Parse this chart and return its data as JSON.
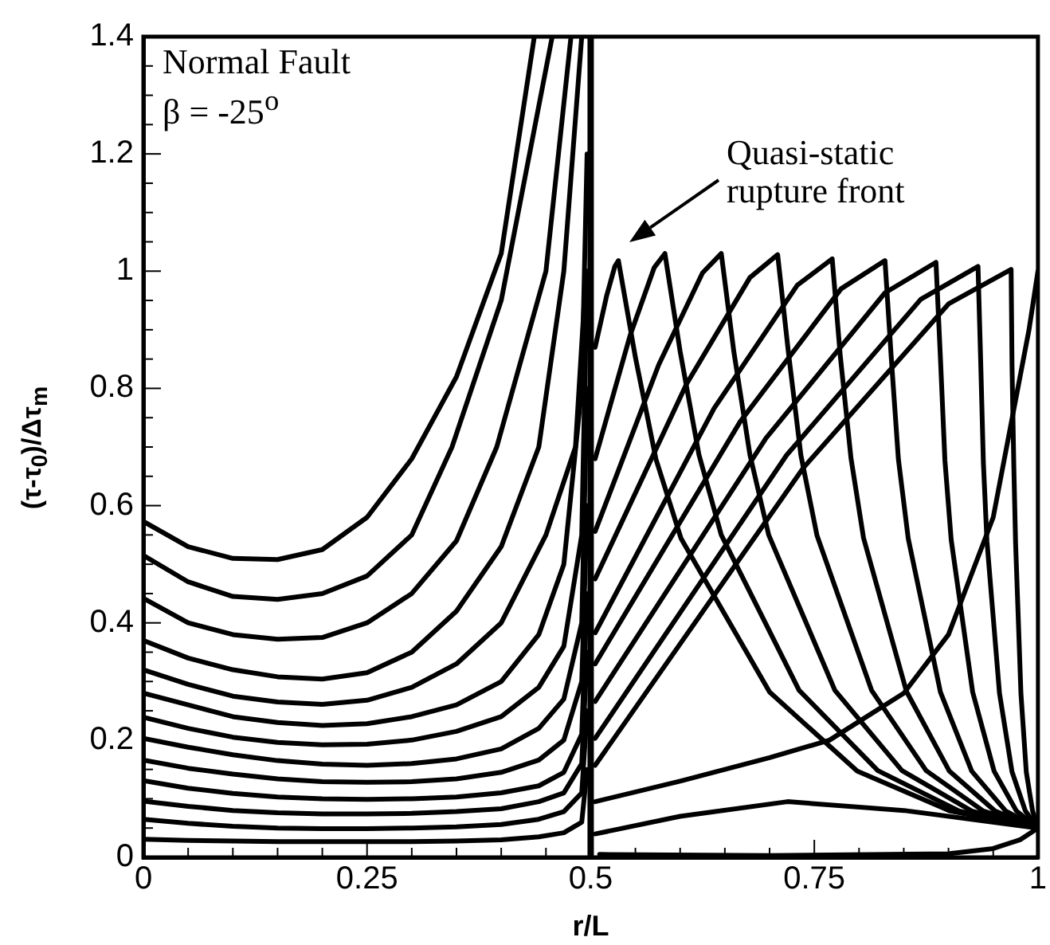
{
  "chart_data": {
    "type": "line",
    "xlabel": "r/L",
    "ylabel": "(τ-τ$_{0}$)/Δτ$_{m}$",
    "annotations": [
      "Normal Fault",
      "β = -25$^{o}$",
      "Quasi-static rupture front"
    ],
    "xlim": [
      0,
      1
    ],
    "ylim": [
      0,
      1.4
    ],
    "xticks": [
      0,
      {
        "value": 0.05,
        "label": null
      },
      {
        "value": 0.1,
        "label": null
      },
      {
        "value": 0.15,
        "label": null
      },
      {
        "value": 0.2,
        "label": null
      },
      0.25,
      {
        "value": 0.3,
        "label": null
      },
      {
        "value": 0.35,
        "label": null
      },
      {
        "value": 0.4,
        "label": null
      },
      {
        "value": 0.45,
        "label": null
      },
      0.5,
      {
        "value": 0.55,
        "label": null
      },
      {
        "value": 0.6,
        "label": null
      },
      {
        "value": 0.65,
        "label": null
      },
      {
        "value": 0.7,
        "label": null
      },
      0.75,
      {
        "value": 0.8,
        "label": null
      },
      {
        "value": 0.85,
        "label": null
      },
      {
        "value": 0.9,
        "label": null
      },
      {
        "value": 0.95,
        "label": null
      },
      1
    ],
    "yticks": [
      0,
      {
        "value": 0.05,
        "label": null
      },
      {
        "value": 0.1,
        "label": null
      },
      {
        "value": 0.15,
        "label": null
      },
      0.2,
      {
        "value": 0.25,
        "label": null
      },
      {
        "value": 0.3,
        "label": null
      },
      {
        "value": 0.35,
        "label": null
      },
      0.4,
      {
        "value": 0.45,
        "label": null
      },
      {
        "value": 0.5,
        "label": null
      },
      {
        "value": 0.55,
        "label": null
      },
      0.6,
      {
        "value": 0.65,
        "label": null
      },
      {
        "value": 0.7,
        "label": null
      },
      {
        "value": 0.75,
        "label": null
      },
      0.8,
      {
        "value": 0.85,
        "label": null
      },
      {
        "value": 0.9,
        "label": null
      },
      {
        "value": 0.95,
        "label": null
      },
      1,
      {
        "value": 1.05,
        "label": null
      },
      {
        "value": 1.1,
        "label": null
      },
      {
        "value": 1.15,
        "label": null
      },
      1.2,
      {
        "value": 1.25,
        "label": null
      },
      {
        "value": 1.3,
        "label": null
      },
      {
        "value": 1.35,
        "label": null
      },
      1.4
    ],
    "ref_lines": [
      {
        "axis": "x",
        "value": 0.5,
        "color": "#000000"
      }
    ],
    "series": [
      {
        "color": "#000000",
        "x": [
          0,
          0.05,
          0.1,
          0.15,
          0.2,
          0.25,
          0.3,
          0.35,
          0.4,
          0.437
        ],
        "values": [
          0.573,
          0.53,
          0.51,
          0.508,
          0.525,
          0.58,
          0.68,
          0.82,
          1.03,
          1.4
        ]
      },
      {
        "color": "#000000",
        "x": [
          0,
          0.05,
          0.1,
          0.15,
          0.2,
          0.25,
          0.3,
          0.345,
          0.4,
          0.457
        ],
        "values": [
          0.515,
          0.47,
          0.445,
          0.44,
          0.45,
          0.48,
          0.55,
          0.7,
          0.95,
          1.4
        ]
      },
      {
        "color": "#000000",
        "x": [
          0,
          0.05,
          0.1,
          0.15,
          0.2,
          0.25,
          0.3,
          0.35,
          0.395,
          0.45,
          0.478
        ],
        "values": [
          0.442,
          0.4,
          0.38,
          0.372,
          0.375,
          0.4,
          0.45,
          0.54,
          0.7,
          1.0,
          1.4
        ]
      },
      {
        "color": "#000000",
        "x": [
          0,
          0.05,
          0.1,
          0.15,
          0.2,
          0.25,
          0.3,
          0.35,
          0.4,
          0.442,
          0.47,
          0.49
        ],
        "values": [
          0.37,
          0.34,
          0.32,
          0.308,
          0.304,
          0.315,
          0.35,
          0.42,
          0.53,
          0.7,
          1.0,
          1.4
        ]
      },
      {
        "color": "#000000",
        "x": [
          0,
          0.05,
          0.1,
          0.15,
          0.2,
          0.25,
          0.3,
          0.35,
          0.4,
          0.45,
          0.483,
          0.495
        ],
        "values": [
          0.32,
          0.295,
          0.275,
          0.265,
          0.261,
          0.268,
          0.29,
          0.33,
          0.4,
          0.55,
          0.7,
          1.0
        ]
      },
      {
        "color": "#000000",
        "x": [
          0,
          0.05,
          0.1,
          0.15,
          0.2,
          0.25,
          0.3,
          0.35,
          0.4,
          0.442,
          0.47,
          0.49,
          0.496
        ],
        "values": [
          0.28,
          0.26,
          0.24,
          0.23,
          0.225,
          0.228,
          0.24,
          0.26,
          0.3,
          0.38,
          0.5,
          0.8,
          1.2
        ]
      },
      {
        "color": "#000000",
        "x": [
          0,
          0.05,
          0.1,
          0.15,
          0.2,
          0.25,
          0.3,
          0.35,
          0.4,
          0.442,
          0.47,
          0.49,
          0.496
        ],
        "values": [
          0.239,
          0.22,
          0.205,
          0.196,
          0.192,
          0.193,
          0.2,
          0.215,
          0.24,
          0.29,
          0.36,
          0.55,
          1.0
        ]
      },
      {
        "color": "#000000",
        "x": [
          0,
          0.05,
          0.1,
          0.15,
          0.2,
          0.25,
          0.3,
          0.35,
          0.4,
          0.442,
          0.47,
          0.49,
          0.496
        ],
        "values": [
          0.203,
          0.188,
          0.175,
          0.165,
          0.159,
          0.157,
          0.16,
          0.168,
          0.185,
          0.22,
          0.27,
          0.4,
          0.8
        ]
      },
      {
        "color": "#000000",
        "x": [
          0,
          0.05,
          0.1,
          0.15,
          0.2,
          0.25,
          0.3,
          0.35,
          0.4,
          0.442,
          0.47,
          0.49,
          0.496
        ],
        "values": [
          0.166,
          0.152,
          0.142,
          0.134,
          0.129,
          0.128,
          0.129,
          0.134,
          0.145,
          0.166,
          0.2,
          0.3,
          0.6
        ]
      },
      {
        "color": "#000000",
        "x": [
          0,
          0.05,
          0.1,
          0.15,
          0.2,
          0.25,
          0.3,
          0.35,
          0.4,
          0.442,
          0.47,
          0.49,
          0.496
        ],
        "values": [
          0.131,
          0.118,
          0.109,
          0.103,
          0.1,
          0.099,
          0.1,
          0.103,
          0.11,
          0.122,
          0.145,
          0.21,
          0.45
        ]
      },
      {
        "color": "#000000",
        "x": [
          0,
          0.05,
          0.1,
          0.15,
          0.2,
          0.25,
          0.3,
          0.35,
          0.4,
          0.442,
          0.47,
          0.49,
          0.496
        ],
        "values": [
          0.096,
          0.087,
          0.08,
          0.076,
          0.074,
          0.074,
          0.075,
          0.078,
          0.083,
          0.095,
          0.11,
          0.16,
          0.35
        ]
      },
      {
        "color": "#000000",
        "x": [
          0,
          0.05,
          0.1,
          0.15,
          0.2,
          0.25,
          0.3,
          0.35,
          0.4,
          0.442,
          0.47,
          0.49,
          0.496
        ],
        "values": [
          0.065,
          0.058,
          0.053,
          0.05,
          0.049,
          0.049,
          0.05,
          0.052,
          0.056,
          0.065,
          0.078,
          0.11,
          0.25
        ]
      },
      {
        "color": "#000000",
        "x": [
          0,
          0.05,
          0.1,
          0.15,
          0.2,
          0.25,
          0.3,
          0.35,
          0.4,
          0.442,
          0.47,
          0.49,
          0.496
        ],
        "values": [
          0.031,
          0.029,
          0.028,
          0.027,
          0.027,
          0.027,
          0.027,
          0.028,
          0.03,
          0.035,
          0.042,
          0.06,
          0.15
        ]
      },
      {
        "color": "#000000",
        "x": [
          0.505,
          0.518,
          0.527,
          0.531,
          0.55,
          0.573,
          0.601,
          0.7,
          0.798,
          0.902,
          1
        ],
        "values": [
          0.87,
          0.959,
          1.008,
          1.018,
          0.853,
          0.679,
          0.544,
          0.282,
          0.147,
          0.079,
          0.05
        ]
      },
      {
        "color": "#000000",
        "x": [
          0.505,
          0.544,
          0.571,
          0.583,
          0.6,
          0.621,
          0.646,
          0.733,
          0.821,
          0.912,
          1
        ],
        "values": [
          0.68,
          0.89,
          1.006,
          1.03,
          0.863,
          0.687,
          0.55,
          0.285,
          0.148,
          0.079,
          0.05
        ]
      },
      {
        "color": "#000000",
        "x": [
          0.505,
          0.576,
          0.625,
          0.646,
          0.66,
          0.678,
          0.699,
          0.773,
          0.848,
          0.926,
          1
        ],
        "values": [
          0.556,
          0.84,
          0.997,
          1.03,
          0.863,
          0.687,
          0.55,
          0.285,
          0.148,
          0.079,
          0.05
        ]
      },
      {
        "color": "#000000",
        "x": [
          0.505,
          0.607,
          0.678,
          0.709,
          0.721,
          0.735,
          0.753,
          0.814,
          0.875,
          0.939,
          1
        ],
        "values": [
          0.475,
          0.807,
          0.989,
          1.028,
          0.862,
          0.686,
          0.549,
          0.285,
          0.148,
          0.079,
          0.05
        ]
      },
      {
        "color": "#000000",
        "x": [
          0.505,
          0.638,
          0.731,
          0.77,
          0.779,
          0.791,
          0.805,
          0.853,
          0.901,
          0.952,
          1
        ],
        "values": [
          0.383,
          0.766,
          0.976,
          1.021,
          0.856,
          0.681,
          0.545,
          0.283,
          0.147,
          0.079,
          0.05
        ]
      },
      {
        "color": "#000000",
        "x": [
          0.505,
          0.667,
          0.78,
          0.829,
          0.836,
          0.844,
          0.855,
          0.891,
          0.926,
          0.964,
          1
        ],
        "values": [
          0.33,
          0.743,
          0.97,
          1.018,
          0.853,
          0.679,
          0.544,
          0.282,
          0.147,
          0.079,
          0.05
        ]
      },
      {
        "color": "#000000",
        "x": [
          0.505,
          0.696,
          0.829,
          0.886,
          0.891,
          0.896,
          0.903,
          0.927,
          0.951,
          0.976,
          1
        ],
        "values": [
          0.266,
          0.715,
          0.963,
          1.015,
          0.851,
          0.677,
          0.542,
          0.282,
          0.147,
          0.079,
          0.05
        ]
      },
      {
        "color": "#000000",
        "x": [
          0.505,
          0.719,
          0.869,
          0.933,
          0.936,
          0.939,
          0.943,
          0.957,
          0.971,
          0.986,
          1
        ],
        "values": [
          0.203,
          0.686,
          0.952,
          1.008,
          0.845,
          0.673,
          0.539,
          0.28,
          0.146,
          0.079,
          0.05
        ]
      },
      {
        "color": "#000000",
        "x": [
          0.505,
          0.738,
          0.9,
          0.97,
          0.971,
          0.973,
          0.975,
          0.981,
          0.987,
          0.994,
          1
        ],
        "values": [
          0.157,
          0.665,
          0.944,
          1.003,
          0.841,
          0.669,
          0.536,
          0.279,
          0.145,
          0.079,
          0.05
        ]
      },
      {
        "color": "#000000",
        "x": [
          0.505,
          0.6,
          0.7,
          0.767,
          0.85,
          0.9,
          0.95,
          0.99,
          1
        ],
        "values": [
          0.095,
          0.13,
          0.17,
          0.2,
          0.28,
          0.38,
          0.58,
          0.9,
          1.0
        ]
      },
      {
        "color": "#000000",
        "x": [
          0.505,
          0.6,
          0.72,
          0.85,
          1
        ],
        "values": [
          0.04,
          0.07,
          0.095,
          0.08,
          0.05
        ]
      },
      {
        "color": "#000000",
        "x": [
          0.51,
          0.7,
          0.9,
          0.95,
          0.98,
          1
        ],
        "values": [
          0.005,
          0.003,
          0.006,
          0.015,
          0.03,
          0.05
        ]
      }
    ]
  }
}
